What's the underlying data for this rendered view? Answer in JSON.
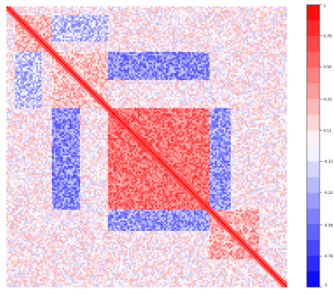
{
  "chart_data": {
    "type": "heatmap",
    "title": "",
    "xlabel": "",
    "ylabel": "",
    "matrix_size": 160,
    "value_range": [
      -1,
      1
    ],
    "colormap": {
      "negative": "#0000ff",
      "zero": "#ffffff",
      "positive": "#ff0000"
    },
    "colorbar_ticks": [
      "1",
      "0.78",
      "0.56",
      "0.33",
      "0.11",
      "-0.11",
      "-0.33",
      "-0.56",
      "-0.78",
      "-1"
    ],
    "diagonal_value": 1,
    "block_structure": [
      {
        "range": [
          0.36,
          0.72
        ],
        "value": 0.55,
        "description": "large positive core block"
      },
      {
        "range": [
          0.03,
          0.16
        ],
        "value": 0.3,
        "description": "top positive cluster"
      },
      {
        "range": [
          0.72,
          0.9
        ],
        "value": 0.35,
        "description": "lower-right positive cluster"
      },
      {
        "pair": [
          [
            0.16,
            0.36
          ],
          [
            0.16,
            0.36
          ]
        ],
        "value": 0.25
      },
      {
        "pair": [
          [
            0.16,
            0.26
          ],
          [
            0.36,
            0.72
          ]
        ],
        "value": -0.45,
        "description": "negative bands"
      },
      {
        "pair": [
          [
            0.72,
            0.8
          ],
          [
            0.36,
            0.72
          ]
        ],
        "value": -0.4
      },
      {
        "pair": [
          [
            0.03,
            0.12
          ],
          [
            0.16,
            0.36
          ]
        ],
        "value": -0.25
      }
    ]
  }
}
